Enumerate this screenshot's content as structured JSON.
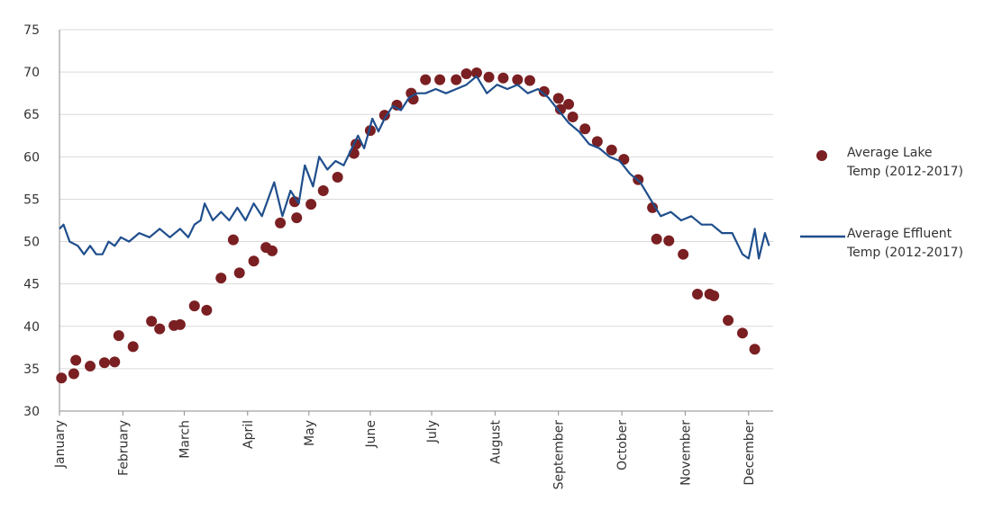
{
  "chart_data": {
    "type": "combo",
    "xlim": [
      1,
      350
    ],
    "xticks": [
      {
        "value": 1,
        "label": "January"
      },
      {
        "value": 32,
        "label": "February"
      },
      {
        "value": 62,
        "label": "March"
      },
      {
        "value": 93,
        "label": "April"
      },
      {
        "value": 123,
        "label": "May"
      },
      {
        "value": 153,
        "label": "June"
      },
      {
        "value": 183,
        "label": "July"
      },
      {
        "value": 214,
        "label": "August"
      },
      {
        "value": 245,
        "label": "September"
      },
      {
        "value": 276,
        "label": "October"
      },
      {
        "value": 307,
        "label": "November"
      },
      {
        "value": 338,
        "label": "December"
      }
    ],
    "ylim": [
      30,
      75
    ],
    "yticks": [
      30,
      35,
      40,
      45,
      50,
      55,
      60,
      65,
      70,
      75
    ],
    "grid": true,
    "legend": "right",
    "series": [
      {
        "name": "Average Lake Temp (2012-2017)",
        "type": "scatter",
        "color": "#7a1f22",
        "x": [
          2,
          8,
          9,
          16,
          23,
          28,
          30,
          37,
          46,
          50,
          57,
          60,
          67,
          73,
          80,
          86,
          89,
          96,
          102,
          105,
          109,
          116,
          117,
          124,
          130,
          137,
          145,
          146,
          153,
          160,
          166,
          173,
          174,
          180,
          187,
          195,
          200,
          205,
          211,
          218,
          225,
          231,
          238,
          245,
          246,
          250,
          252,
          258,
          264,
          271,
          277,
          284,
          291,
          293,
          299,
          306,
          313,
          319,
          321,
          328,
          335,
          341
        ],
        "values": [
          33.9,
          34.4,
          36.0,
          35.3,
          35.7,
          35.8,
          38.9,
          37.6,
          40.6,
          39.7,
          40.1,
          40.2,
          42.4,
          41.9,
          45.7,
          50.2,
          46.3,
          47.7,
          49.3,
          48.9,
          52.2,
          54.7,
          52.8,
          54.4,
          56.0,
          57.6,
          60.4,
          61.5,
          63.1,
          64.9,
          66.1,
          67.5,
          66.8,
          69.1,
          69.1,
          69.1,
          69.8,
          69.9,
          69.4,
          69.3,
          69.1,
          69.0,
          67.7,
          66.9,
          65.6,
          66.2,
          64.7,
          63.3,
          61.8,
          60.8,
          59.7,
          57.3,
          54.0,
          50.3,
          50.1,
          48.5,
          43.8,
          43.8,
          43.6,
          40.7,
          39.2,
          37.3
        ]
      },
      {
        "name": "Average Effluent Temp (2012-2017)",
        "type": "line",
        "color": "#1f4e8c",
        "x": [
          1,
          3,
          6,
          10,
          13,
          16,
          19,
          22,
          25,
          28,
          31,
          35,
          40,
          45,
          50,
          55,
          60,
          64,
          67,
          70,
          72,
          76,
          80,
          84,
          88,
          92,
          96,
          100,
          103,
          106,
          110,
          114,
          118,
          121,
          125,
          128,
          132,
          136,
          140,
          144,
          147,
          150,
          154,
          157,
          160,
          164,
          168,
          172,
          176,
          180,
          185,
          190,
          195,
          200,
          205,
          210,
          215,
          220,
          225,
          230,
          235,
          240,
          245,
          250,
          255,
          260,
          265,
          270,
          275,
          280,
          285,
          290,
          295,
          300,
          305,
          310,
          315,
          320,
          325,
          330,
          335,
          338,
          341,
          343,
          346,
          348
        ],
        "values": [
          51.5,
          52,
          50,
          49.5,
          48.5,
          49.5,
          48.5,
          48.5,
          50,
          49.5,
          50.5,
          50,
          51,
          50.5,
          51.5,
          50.5,
          51.5,
          50.5,
          52,
          52.5,
          54.5,
          52.5,
          53.5,
          52.5,
          54,
          52.5,
          54.5,
          53,
          55,
          57,
          53,
          56,
          54.5,
          59,
          56.5,
          60,
          58.5,
          59.5,
          59,
          61,
          62.5,
          61,
          64.5,
          63,
          64.5,
          66,
          65.5,
          67,
          67.5,
          67.5,
          68,
          67.5,
          68,
          68.5,
          69.5,
          67.5,
          68.5,
          68,
          68.5,
          67.5,
          68,
          67,
          65.5,
          64,
          63,
          61.5,
          61,
          60,
          59.5,
          58,
          57,
          55,
          53,
          53.5,
          52.5,
          53,
          52,
          52,
          51,
          51,
          48.5,
          48,
          51.5,
          48,
          51,
          49.5
        ]
      }
    ]
  }
}
